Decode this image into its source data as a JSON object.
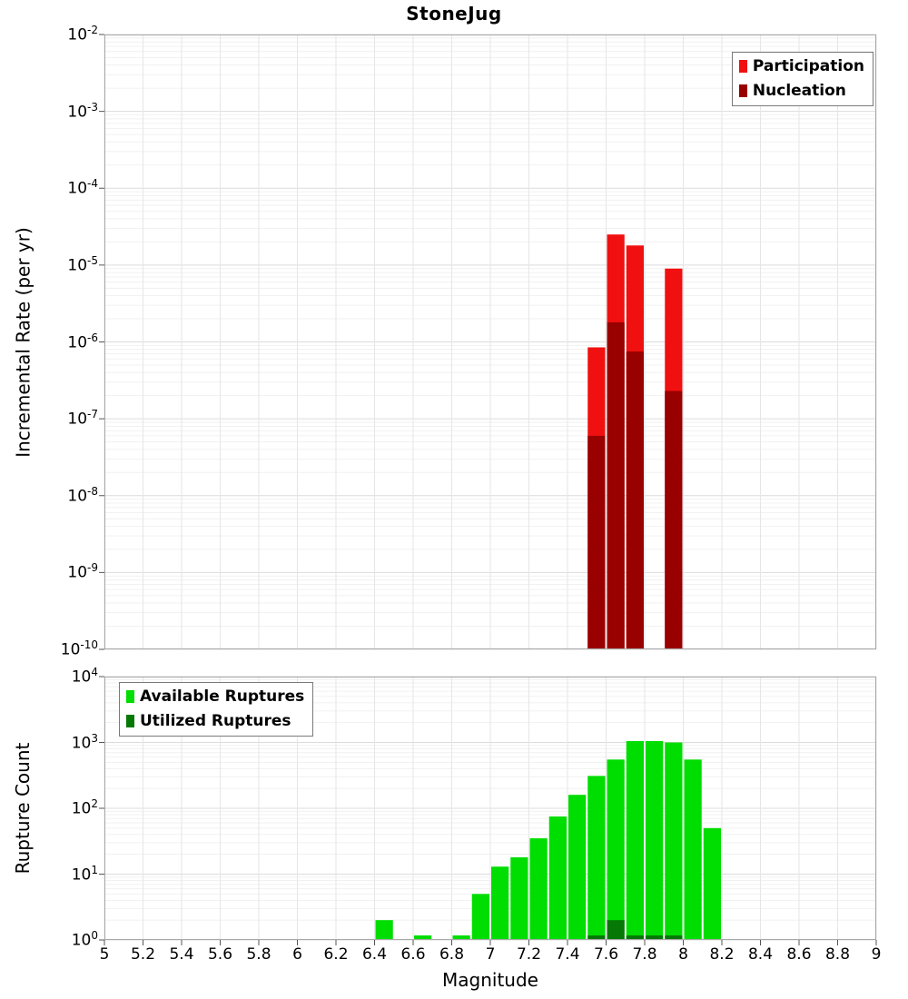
{
  "title": "StoneJug",
  "xlabel": "Magnitude",
  "axes": {
    "x_tick_labels": [
      "5",
      "5.2",
      "5.4",
      "5.6",
      "5.8",
      "6",
      "6.2",
      "6.4",
      "6.6",
      "6.8",
      "7",
      "7.2",
      "7.4",
      "7.6",
      "7.8",
      "8",
      "8.2",
      "8.4",
      "8.6",
      "8.8",
      "9"
    ],
    "top_y_exponents": [
      -2,
      -3,
      -4,
      -5,
      -6,
      -7,
      -8,
      -9,
      -10
    ],
    "bottom_y_exponents": [
      4,
      3,
      2,
      1,
      0
    ]
  },
  "chart_data": [
    {
      "type": "bar",
      "name": "incremental-rate",
      "title": "StoneJug",
      "ylabel": "Incremental Rate (per yr)",
      "yscale": "log",
      "ylim": [
        1e-10,
        0.01
      ],
      "xlim": [
        5,
        9
      ],
      "bin_width": 0.1,
      "grid": true,
      "legend_position": "top-right",
      "series": [
        {
          "name": "Participation",
          "color": "#f01010",
          "bins": [
            [
              7.5,
              8.5e-07
            ],
            [
              7.6,
              2.5e-05
            ],
            [
              7.7,
              1.8e-05
            ],
            [
              7.9,
              9e-06
            ]
          ]
        },
        {
          "name": "Nucleation",
          "color": "#990000",
          "bins": [
            [
              7.5,
              6e-08
            ],
            [
              7.6,
              1.8e-06
            ],
            [
              7.7,
              7.5e-07
            ],
            [
              7.9,
              2.3e-07
            ]
          ]
        }
      ]
    },
    {
      "type": "bar",
      "name": "rupture-count",
      "ylabel": "Rupture Count",
      "yscale": "log",
      "ylim": [
        1,
        10000.0
      ],
      "xlim": [
        5,
        9
      ],
      "bin_width": 0.1,
      "grid": true,
      "legend_position": "top-left",
      "series": [
        {
          "name": "Available Ruptures",
          "color": "#00dd00",
          "bins": [
            [
              6.4,
              2
            ],
            [
              6.6,
              1
            ],
            [
              6.8,
              1
            ],
            [
              6.9,
              5
            ],
            [
              7.0,
              13
            ],
            [
              7.1,
              18
            ],
            [
              7.2,
              35
            ],
            [
              7.3,
              75
            ],
            [
              7.4,
              160
            ],
            [
              7.5,
              310
            ],
            [
              7.6,
              550
            ],
            [
              7.7,
              1050
            ],
            [
              7.8,
              1050
            ],
            [
              7.9,
              1000
            ],
            [
              8.0,
              550
            ],
            [
              8.1,
              50
            ]
          ]
        },
        {
          "name": "Utilized Ruptures",
          "color": "#067806",
          "bins": [
            [
              7.5,
              1
            ],
            [
              7.6,
              2
            ],
            [
              7.7,
              1
            ],
            [
              7.8,
              1
            ],
            [
              7.9,
              1
            ]
          ]
        }
      ]
    }
  ]
}
